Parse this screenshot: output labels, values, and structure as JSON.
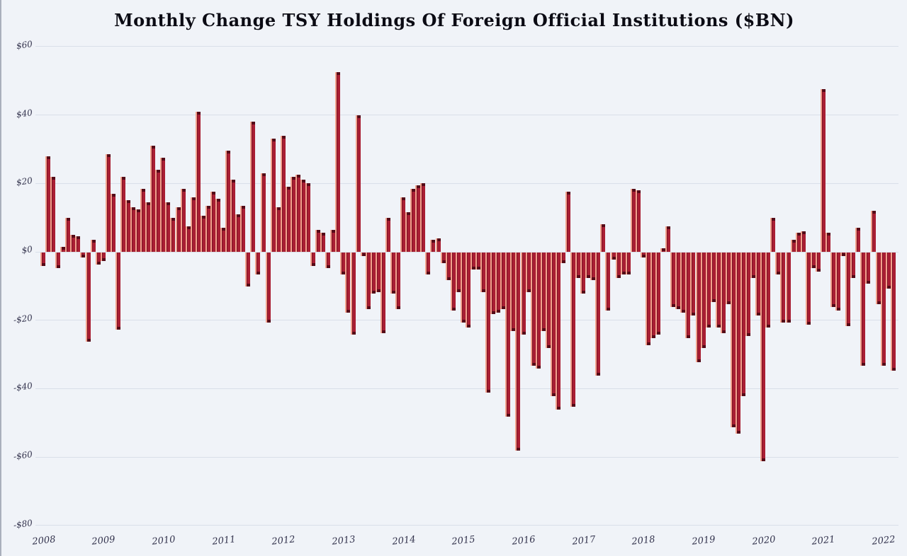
{
  "title": "Monthly Change TSY Holdings Of Foreign Official Institutions ($BN)",
  "chart_data": {
    "type": "bar",
    "title": "Monthly Change TSY Holdings Of Foreign Official Institutions ($BN)",
    "xlabel": "",
    "ylabel": "",
    "unit": "$BN",
    "ylim": [
      -80,
      60
    ],
    "grid": true,
    "legend_position": "none",
    "y_ticks": [
      {
        "label": "$60",
        "value": 60
      },
      {
        "label": "$40",
        "value": 40
      },
      {
        "label": "$20",
        "value": 20
      },
      {
        "label": "$0",
        "value": 0
      },
      {
        "label": "-$20",
        "value": -20
      },
      {
        "label": "-$40",
        "value": -40
      },
      {
        "label": "-$60",
        "value": -60
      },
      {
        "label": "-$80",
        "value": -80
      }
    ],
    "x_ticks": [
      "2008",
      "2009",
      "2010",
      "2011",
      "2012",
      "2013",
      "2014",
      "2015",
      "2016",
      "2017",
      "2018",
      "2019",
      "2020",
      "2021",
      "2022"
    ],
    "start": {
      "year": 2008,
      "month": 1
    },
    "frequency": "monthly",
    "series": [
      {
        "year": 2008,
        "values": [
          -4,
          28,
          22,
          -4.5,
          1.5,
          10,
          5,
          4.5,
          -1.5,
          -26,
          3.5,
          -3.5
        ]
      },
      {
        "year": 2009,
        "values": [
          -2.5,
          28.5,
          17,
          -22.5,
          22,
          15,
          13,
          12.5,
          18.5,
          14.5,
          31,
          24
        ]
      },
      {
        "year": 2010,
        "values": [
          27.5,
          14.5,
          10,
          13,
          18.5,
          7.5,
          16,
          41,
          10.5,
          13.5,
          17.5,
          15.5
        ]
      },
      {
        "year": 2011,
        "values": [
          7,
          29.5,
          21,
          11,
          13.5,
          -10,
          38,
          -6.5,
          23,
          -20.5,
          33,
          13
        ]
      },
      {
        "year": 2012,
        "values": [
          34,
          19,
          22,
          22.5,
          21,
          20,
          -4,
          6.5,
          5.5,
          -4.5,
          6.5,
          52.5
        ]
      },
      {
        "year": 2013,
        "values": [
          -6.5,
          -17.5,
          -24,
          40,
          -1,
          -16.5,
          -12,
          -11.5,
          -23.5,
          10,
          -12,
          -16.5
        ]
      },
      {
        "year": 2014,
        "values": [
          16,
          11.5,
          18.5,
          19.5,
          20,
          -6.5,
          3.5,
          4,
          -3,
          -8,
          -17,
          -11.5
        ]
      },
      {
        "year": 2015,
        "values": [
          -20.5,
          -22,
          -5,
          -5,
          -11.5,
          -41,
          -18,
          -17.5,
          -16.5,
          -48,
          -23,
          -58
        ]
      },
      {
        "year": 2016,
        "values": [
          -24,
          -11.5,
          -33,
          -34,
          -23,
          -28,
          -42,
          -46,
          -3,
          17.5,
          -45,
          -7.5
        ]
      },
      {
        "year": 2017,
        "values": [
          -12,
          -7.5,
          -8,
          -36,
          8,
          -17,
          -2,
          -7.5,
          -6.5,
          -6.5,
          18.5,
          18
        ]
      },
      {
        "year": 2018,
        "values": [
          -1.5,
          -27,
          -25,
          -24,
          1,
          7.5,
          -16,
          -16.5,
          -17.5,
          -25,
          -18.5,
          -32
        ]
      },
      {
        "year": 2019,
        "values": [
          -28,
          -22,
          -14.5,
          -22,
          -23.5,
          -15,
          -51,
          -53,
          -42,
          -24.5,
          -7.5,
          -18.5
        ]
      },
      {
        "year": 2020,
        "values": [
          -61,
          -22,
          10,
          -6.5,
          -20.5,
          -20.5,
          3.5,
          5.5,
          6,
          -21,
          -4.5,
          -5.5
        ]
      },
      {
        "year": 2021,
        "values": [
          47.5,
          5.5,
          -16,
          -17,
          -1,
          -21.5,
          -7.5,
          7,
          -33,
          -9,
          12,
          -15
        ]
      },
      {
        "year": 2022,
        "values": [
          -33,
          -10.5,
          -34.5
        ]
      }
    ],
    "colors": {
      "bar": "#a91e33",
      "bar_dark_edge": "#7d1024",
      "bar_highlight": "#f2a18c",
      "bar_cap": "#540a18",
      "grid": "#d9dfe9",
      "label": "#33334d",
      "title": "#0b0b14",
      "background": "#f0f3f8"
    }
  }
}
